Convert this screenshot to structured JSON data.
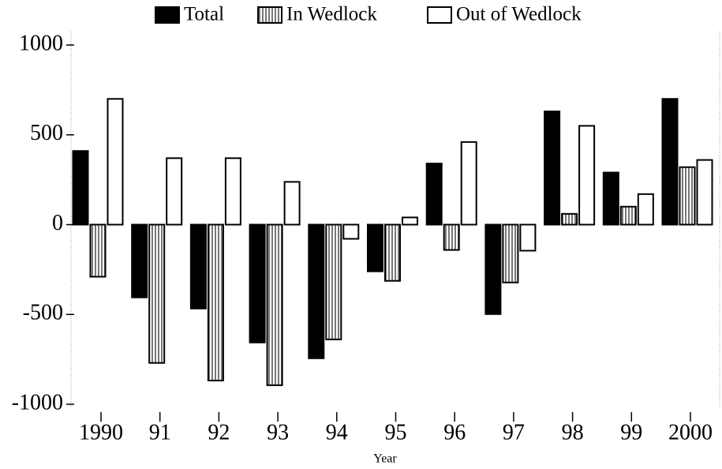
{
  "chart_data": {
    "type": "bar",
    "x_label": "Year",
    "categories": [
      "1990",
      "91",
      "92",
      "93",
      "94",
      "95",
      "96",
      "97",
      "98",
      "99",
      "2000"
    ],
    "series": [
      {
        "name": "Total",
        "color": "#000000",
        "values": [
          410,
          -405,
          -467,
          -656,
          -744,
          -260,
          340,
          -498,
          630,
          290,
          700
        ]
      },
      {
        "name": "In Wedlock",
        "color": "striped",
        "values": [
          -290,
          -770,
          -868,
          -894,
          -639,
          -313,
          -141,
          -322,
          60,
          100,
          320
        ]
      },
      {
        "name": "Out of Wedlock",
        "color": "#ffffff",
        "values": [
          700,
          370,
          370,
          238,
          -79,
          40,
          460,
          -145,
          550,
          170,
          360
        ]
      }
    ],
    "ylim": [
      -1000,
      1000
    ],
    "yticks": [
      -1000,
      -500,
      0,
      500,
      1000
    ],
    "legend": "top"
  }
}
